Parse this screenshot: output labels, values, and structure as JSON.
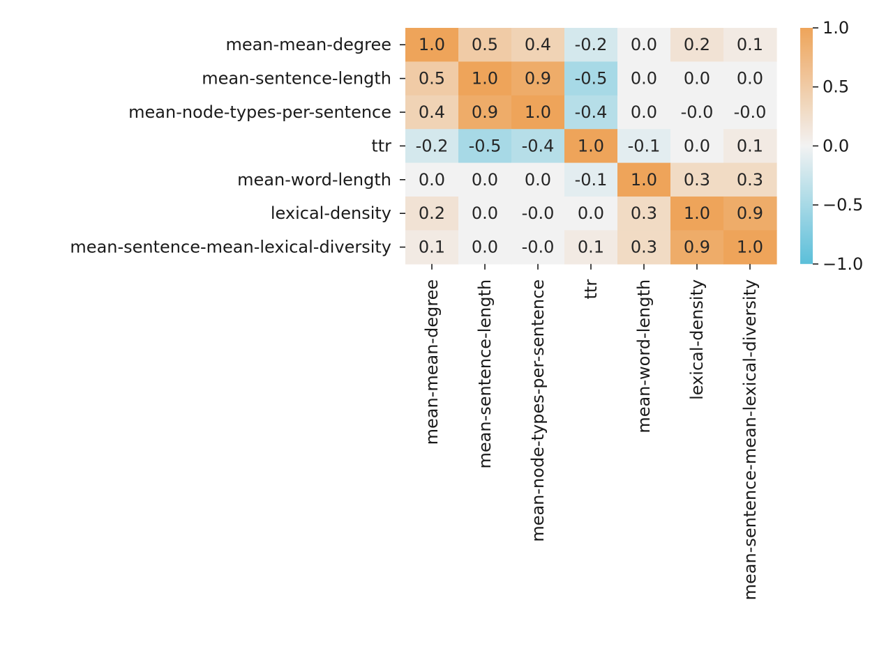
{
  "chart_data": {
    "type": "heatmap",
    "title": "",
    "xlabel": "",
    "ylabel": "",
    "rows": [
      "mean-mean-degree",
      "mean-sentence-length",
      "mean-node-types-per-sentence",
      "ttr",
      "mean-word-length",
      "lexical-density",
      "mean-sentence-mean-lexical-diversity"
    ],
    "columns": [
      "mean-mean-degree",
      "mean-sentence-length",
      "mean-node-types-per-sentence",
      "ttr",
      "mean-word-length",
      "lexical-density",
      "mean-sentence-mean-lexical-diversity"
    ],
    "values": [
      [
        1.0,
        0.5,
        0.4,
        -0.2,
        0.0,
        0.2,
        0.1
      ],
      [
        0.5,
        1.0,
        0.9,
        -0.5,
        0.0,
        0.0,
        0.0
      ],
      [
        0.4,
        0.9,
        1.0,
        -0.4,
        0.0,
        -0.0,
        -0.0
      ],
      [
        -0.2,
        -0.5,
        -0.4,
        1.0,
        -0.1,
        0.0,
        0.1
      ],
      [
        0.0,
        0.0,
        0.0,
        -0.1,
        1.0,
        0.3,
        0.3
      ],
      [
        0.2,
        0.0,
        -0.0,
        0.0,
        0.3,
        1.0,
        0.9
      ],
      [
        0.1,
        0.0,
        -0.0,
        0.1,
        0.3,
        0.9,
        1.0
      ]
    ],
    "cell_labels": [
      [
        "1.0",
        "0.5",
        "0.4",
        "-0.2",
        "0.0",
        "0.2",
        "0.1"
      ],
      [
        "0.5",
        "1.0",
        "0.9",
        "-0.5",
        "0.0",
        "0.0",
        "0.0"
      ],
      [
        "0.4",
        "0.9",
        "1.0",
        "-0.4",
        "0.0",
        "-0.0",
        "-0.0"
      ],
      [
        "-0.2",
        "-0.5",
        "-0.4",
        "1.0",
        "-0.1",
        "0.0",
        "0.1"
      ],
      [
        "0.0",
        "0.0",
        "0.0",
        "-0.1",
        "1.0",
        "0.3",
        "0.3"
      ],
      [
        "0.2",
        "0.0",
        "-0.0",
        "0.0",
        "0.3",
        "1.0",
        "0.9"
      ],
      [
        "0.1",
        "0.0",
        "-0.0",
        "0.1",
        "0.3",
        "0.9",
        "1.0"
      ]
    ],
    "colorbar": {
      "range": [
        -1.0,
        1.0
      ],
      "ticks": [
        1.0,
        0.5,
        0.0,
        -0.5,
        -1.0
      ],
      "tick_labels": [
        "1.0",
        "0.5",
        "0.0",
        "−0.5",
        "−1.0"
      ]
    },
    "colors": {
      "negative": "#5bbfd9",
      "center": "#f2f2f2",
      "positive": "#eea45a"
    },
    "grid": false,
    "legend": "colorbar-right"
  }
}
